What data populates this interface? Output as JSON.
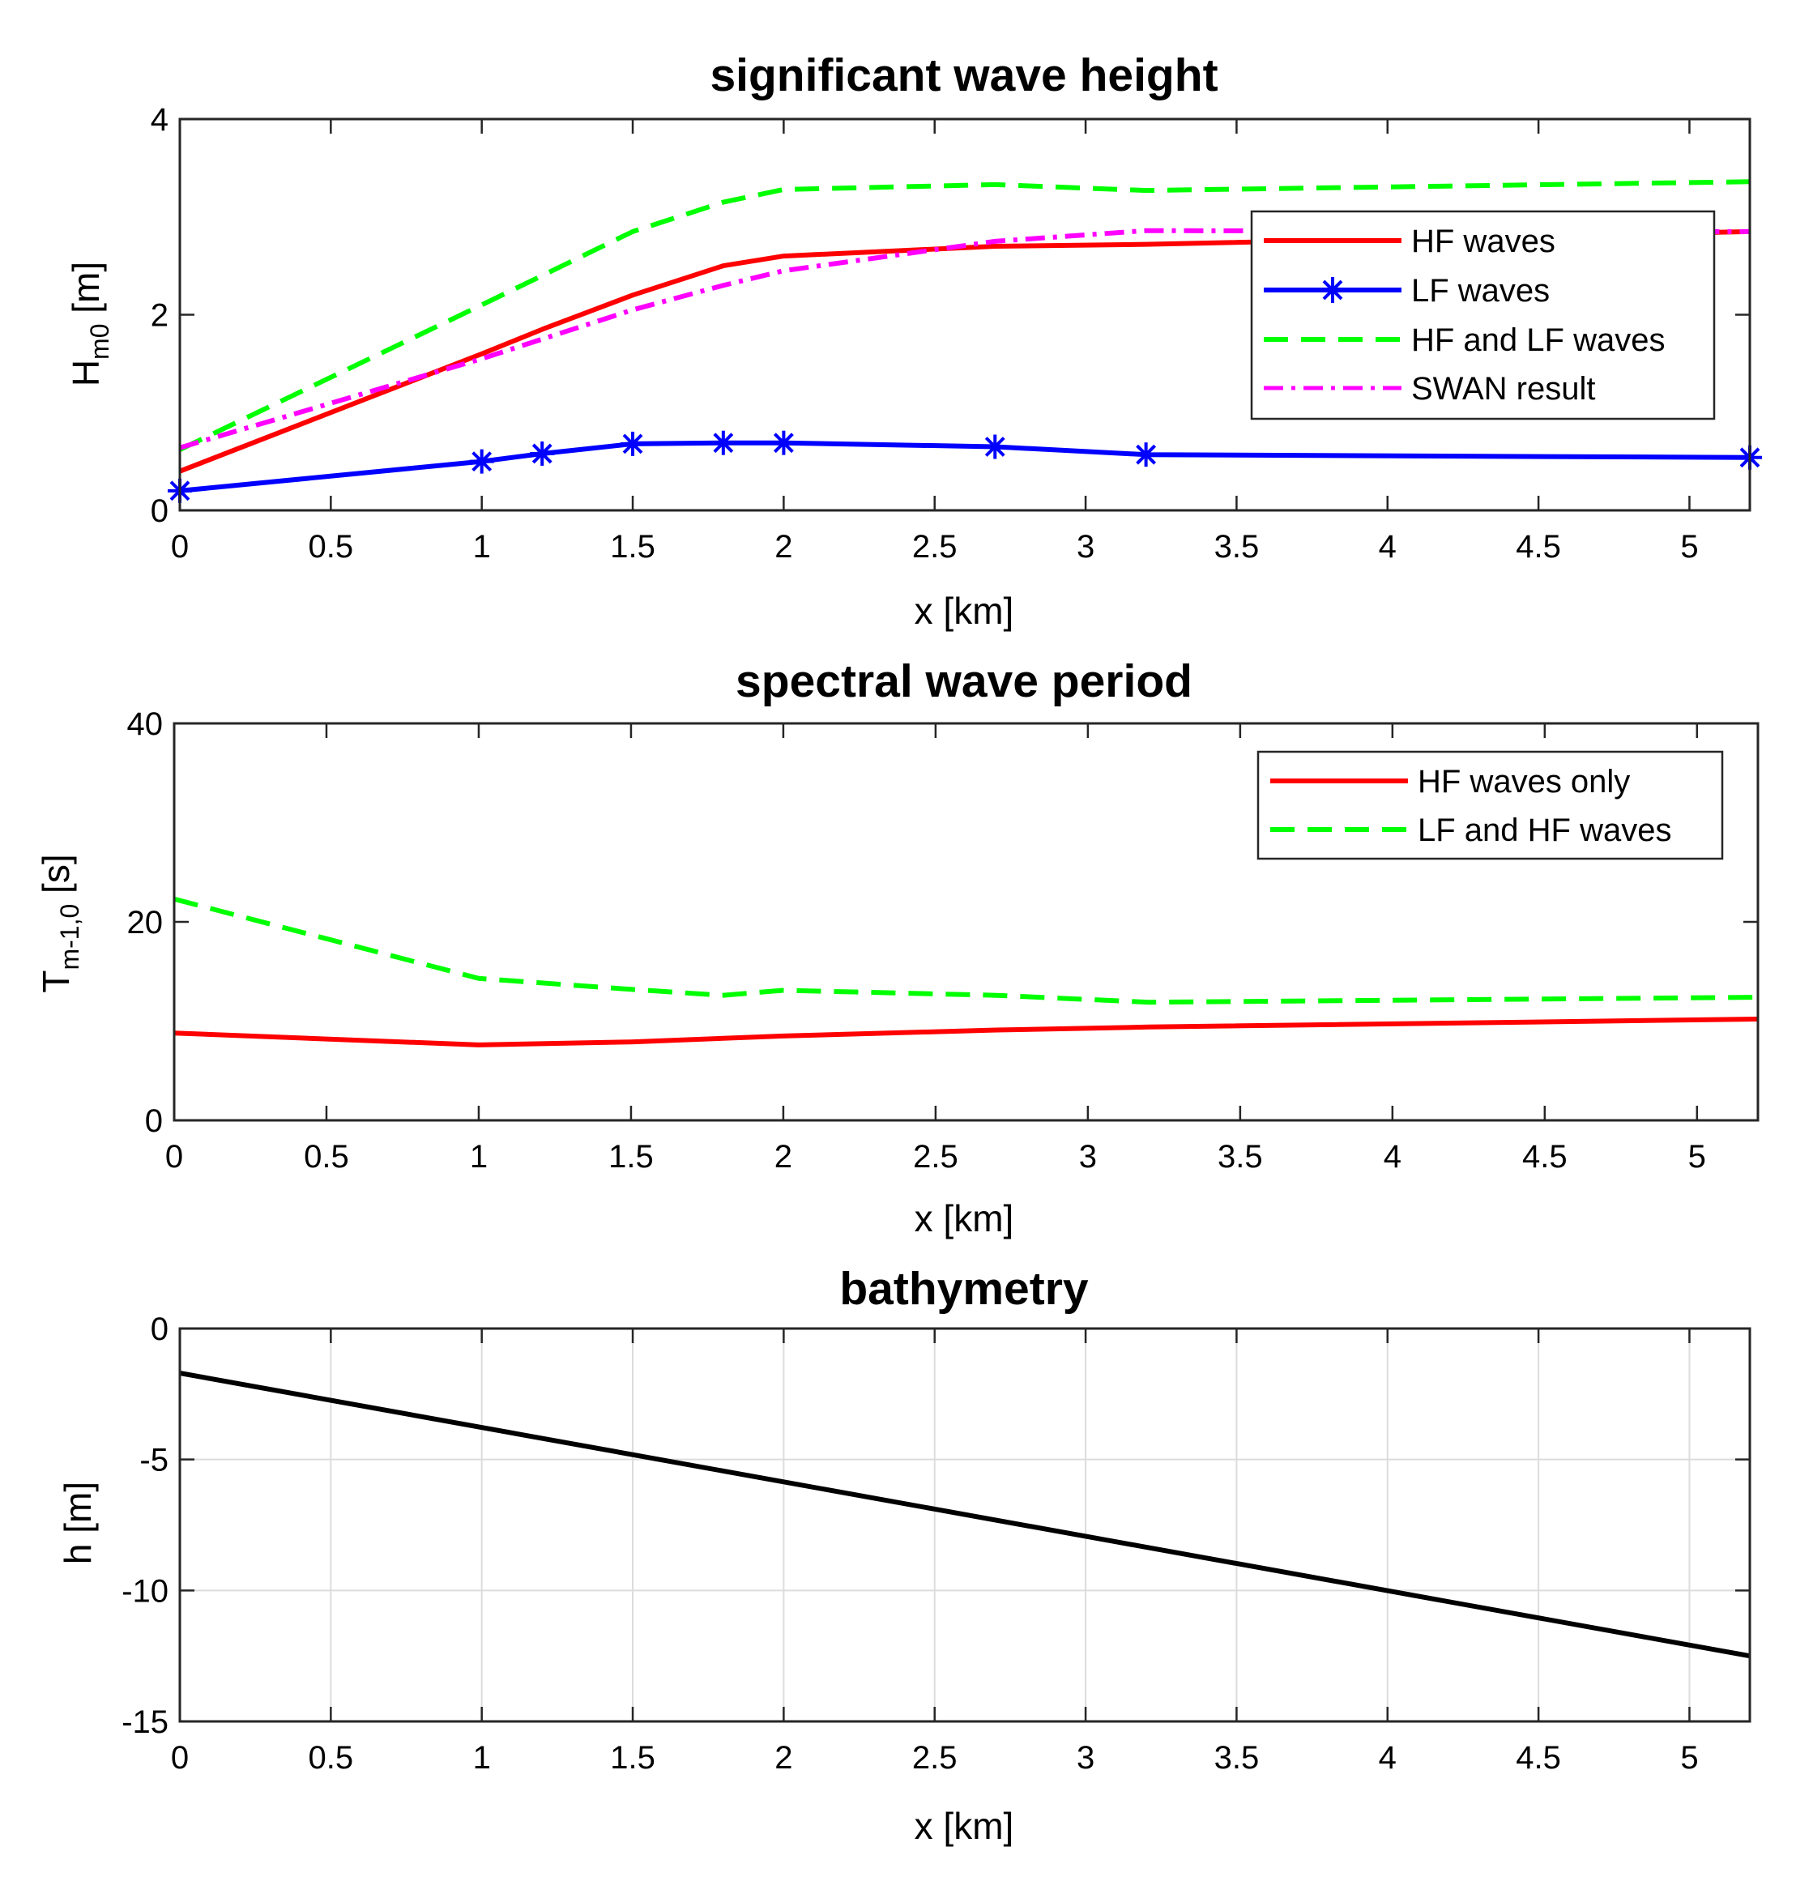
{
  "chart_data": [
    {
      "type": "line",
      "title": "significant wave height",
      "xlabel": "x [km]",
      "ylabel": {
        "base": "H",
        "sub": "m0",
        "unit": " [m]"
      },
      "xlim": [
        0,
        5.2
      ],
      "ylim": [
        0,
        4
      ],
      "xticks": [
        0,
        0.5,
        1,
        1.5,
        2,
        2.5,
        3,
        3.5,
        4,
        4.5,
        5
      ],
      "xtick_labels": [
        "0",
        "0.5",
        "1",
        "1.5",
        "2",
        "2.5",
        "3",
        "3.5",
        "4",
        "4.5",
        "5"
      ],
      "yticks": [
        0,
        2,
        4
      ],
      "ytick_labels": [
        "0",
        "2",
        "4"
      ],
      "grid": false,
      "legend_position": "top-right",
      "series": [
        {
          "name": "HF waves",
          "color": "#ff0000",
          "style": "solid",
          "marker": "none",
          "x": [
            0,
            1,
            1.2,
            1.5,
            1.8,
            2,
            2.7,
            3.2,
            5.2
          ],
          "y": [
            0.4,
            1.6,
            1.85,
            2.2,
            2.5,
            2.6,
            2.7,
            2.72,
            2.85
          ]
        },
        {
          "name": "LF waves",
          "color": "#0000ff",
          "style": "solid",
          "marker": "asterisk",
          "x": [
            0,
            1,
            1.2,
            1.5,
            1.8,
            2,
            2.7,
            3.2,
            5.2
          ],
          "y": [
            0.2,
            0.5,
            0.58,
            0.68,
            0.69,
            0.69,
            0.65,
            0.57,
            0.54
          ]
        },
        {
          "name": "HF and LF waves",
          "color": "#00ff00",
          "style": "dashed",
          "marker": "none",
          "x": [
            0,
            1,
            1.5,
            1.8,
            2,
            2.7,
            3.2,
            5.2
          ],
          "y": [
            0.62,
            2.1,
            2.85,
            3.15,
            3.28,
            3.33,
            3.27,
            3.36
          ]
        },
        {
          "name": "SWAN result",
          "color": "#ff00ff",
          "style": "dashdot",
          "marker": "none",
          "x": [
            0,
            1,
            1.5,
            1.8,
            2,
            2.7,
            3.2,
            5.2
          ],
          "y": [
            0.64,
            1.55,
            2.05,
            2.3,
            2.45,
            2.75,
            2.86,
            2.85
          ]
        }
      ]
    },
    {
      "type": "line",
      "title": "spectral wave period",
      "xlabel": "x [km]",
      "ylabel": {
        "base": "T",
        "sub": "m-1,0",
        "unit": " [s]"
      },
      "xlim": [
        0,
        5.2
      ],
      "ylim": [
        0,
        40
      ],
      "xticks": [
        0,
        0.5,
        1,
        1.5,
        2,
        2.5,
        3,
        3.5,
        4,
        4.5,
        5
      ],
      "xtick_labels": [
        "0",
        "0.5",
        "1",
        "1.5",
        "2",
        "2.5",
        "3",
        "3.5",
        "4",
        "4.5",
        "5"
      ],
      "yticks": [
        0,
        20,
        40
      ],
      "ytick_labels": [
        "0",
        "20",
        "40"
      ],
      "grid": false,
      "legend_position": "top-right",
      "series": [
        {
          "name": "HF waves only",
          "color": "#ff0000",
          "style": "solid",
          "marker": "none",
          "x": [
            0,
            1,
            1.5,
            2,
            2.7,
            3.2,
            5.2
          ],
          "y": [
            8.8,
            7.6,
            7.9,
            8.5,
            9.1,
            9.4,
            10.2
          ]
        },
        {
          "name": "LF and HF waves",
          "color": "#00ff00",
          "style": "dashed",
          "marker": "none",
          "x": [
            0,
            1,
            1.5,
            1.8,
            2,
            2.7,
            3.2,
            5.2
          ],
          "y": [
            22.3,
            14.3,
            13.2,
            12.6,
            13.1,
            12.6,
            11.9,
            12.4
          ]
        }
      ]
    },
    {
      "type": "line",
      "title": "bathymetry",
      "xlabel": "x [km]",
      "ylabel": {
        "base": "h [m]",
        "sub": "",
        "unit": ""
      },
      "xlim": [
        0,
        5.2
      ],
      "ylim": [
        -15,
        0
      ],
      "xticks": [
        0,
        0.5,
        1,
        1.5,
        2,
        2.5,
        3,
        3.5,
        4,
        4.5,
        5
      ],
      "xtick_labels": [
        "0",
        "0.5",
        "1",
        "1.5",
        "2",
        "2.5",
        "3",
        "3.5",
        "4",
        "4.5",
        "5"
      ],
      "yticks": [
        -15,
        -10,
        -5,
        0
      ],
      "ytick_labels": [
        "-15",
        "-10",
        "-5",
        "0"
      ],
      "grid": true,
      "series": [
        {
          "name": "bathymetry",
          "color": "#000000",
          "style": "solid",
          "marker": "none",
          "x": [
            0,
            5.2
          ],
          "y": [
            -1.7,
            -12.5
          ]
        }
      ]
    }
  ]
}
